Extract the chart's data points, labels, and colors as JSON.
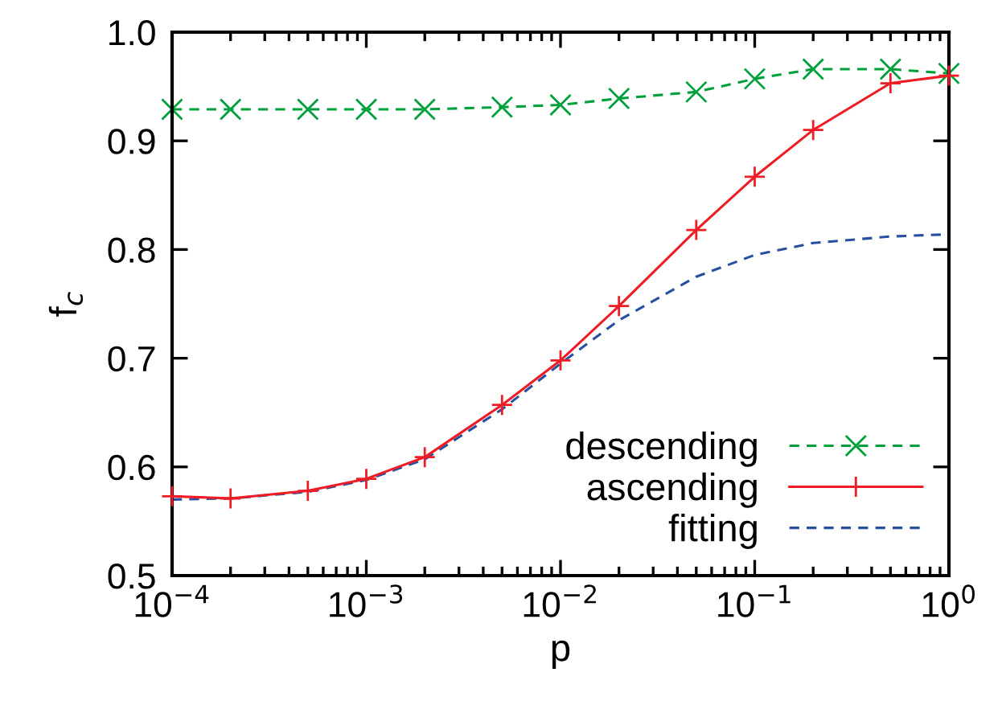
{
  "chart_data": {
    "type": "line",
    "xlabel": "p",
    "ylabel": "f$_{c}$",
    "log": "x",
    "xlim": [
      0.0001,
      1
    ],
    "ylim": [
      0.5,
      1.0
    ],
    "xticks": [
      {
        "value": 0.0001,
        "label": "10$^{−4}$"
      },
      {
        "value": 0.001,
        "label": "10$^{−3}$"
      },
      {
        "value": 0.01,
        "label": "10$^{−2}$"
      },
      {
        "value": 0.1,
        "label": "10$^{−1}$"
      },
      {
        "value": 1,
        "label": "10$^{0}$"
      }
    ],
    "yticks": [
      0.5,
      0.6,
      0.7,
      0.8,
      0.9,
      {
        "value": 1,
        "label": "1.0"
      }
    ],
    "grid": false,
    "legend": "bottom right",
    "series": [
      {
        "name": "descending",
        "color": "#00a03c",
        "marker": "cross",
        "line_style": "dashed",
        "x": [
          0.0001,
          0.0002,
          0.0005,
          0.001,
          0.002,
          0.005,
          0.01,
          0.02,
          0.05,
          0.1,
          0.2,
          0.5,
          1
        ],
        "values": [
          0.929,
          0.929,
          0.929,
          0.929,
          0.929,
          0.931,
          0.933,
          0.939,
          0.945,
          0.957,
          0.966,
          0.966,
          0.962
        ]
      },
      {
        "name": "ascending",
        "color": "#ee1c25",
        "marker": "plus",
        "line_style": "solid",
        "x": [
          0.0001,
          0.0002,
          0.0005,
          0.001,
          0.002,
          0.005,
          0.01,
          0.02,
          0.05,
          0.1,
          0.2,
          0.5,
          1
        ],
        "values": [
          0.573,
          0.571,
          0.578,
          0.589,
          0.609,
          0.657,
          0.698,
          0.748,
          0.818,
          0.867,
          0.91,
          0.953,
          0.96
        ]
      },
      {
        "name": "fitting",
        "color": "#2850a0",
        "marker": "none",
        "line_style": "dashed",
        "x": [
          0.0001,
          0.0002,
          0.0005,
          0.001,
          0.002,
          0.005,
          0.01,
          0.02,
          0.05,
          0.1,
          0.2,
          0.5,
          1
        ],
        "values": [
          0.57,
          0.571,
          0.577,
          0.588,
          0.607,
          0.653,
          0.695,
          0.735,
          0.775,
          0.795,
          0.806,
          0.812,
          0.814
        ]
      }
    ]
  }
}
